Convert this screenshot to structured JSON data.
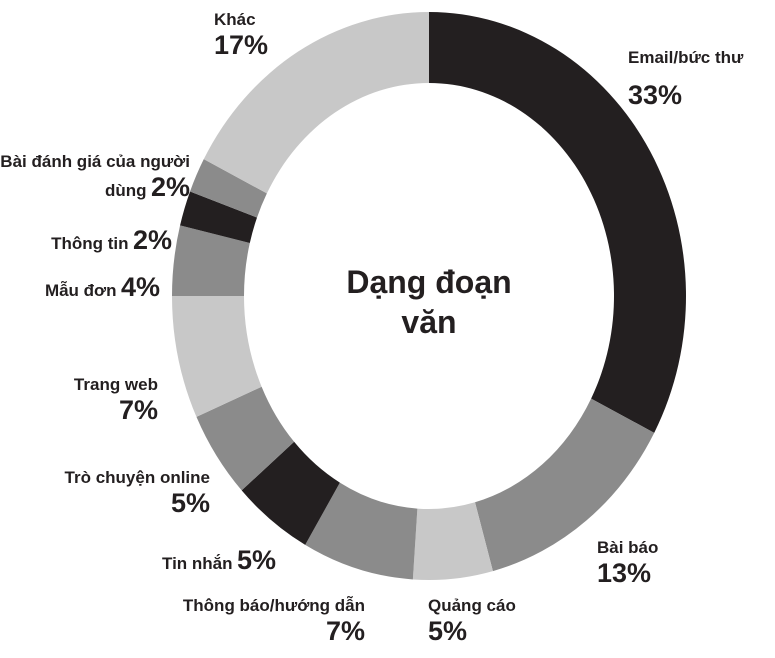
{
  "chart_data": {
    "type": "donut",
    "title": "Dạng đoạn văn",
    "categories": [
      "Email/bức thư",
      "Bài báo",
      "Quảng cáo",
      "Thông báo/hướng dẫn",
      "Tin nhắn",
      "Trò chuyện online",
      "Trang web",
      "Mẫu đơn",
      "Thông tin",
      "Bài đánh giá của người dùng",
      "Khác"
    ],
    "values": [
      33,
      13,
      5,
      7,
      5,
      5,
      7,
      4,
      2,
      2,
      17
    ],
    "value_labels": [
      "33%",
      "13%",
      "5%",
      "7%",
      "5%",
      "5%",
      "7%",
      "4%",
      "2%",
      "2%",
      "17%"
    ],
    "colors": [
      "#231f20",
      "#8b8b8b",
      "#c8c8c8",
      "#8b8b8b",
      "#231f20",
      "#8b8b8b",
      "#c8c8c8",
      "#8b8b8b",
      "#231f20",
      "#8b8b8b",
      "#c8c8c8"
    ]
  }
}
